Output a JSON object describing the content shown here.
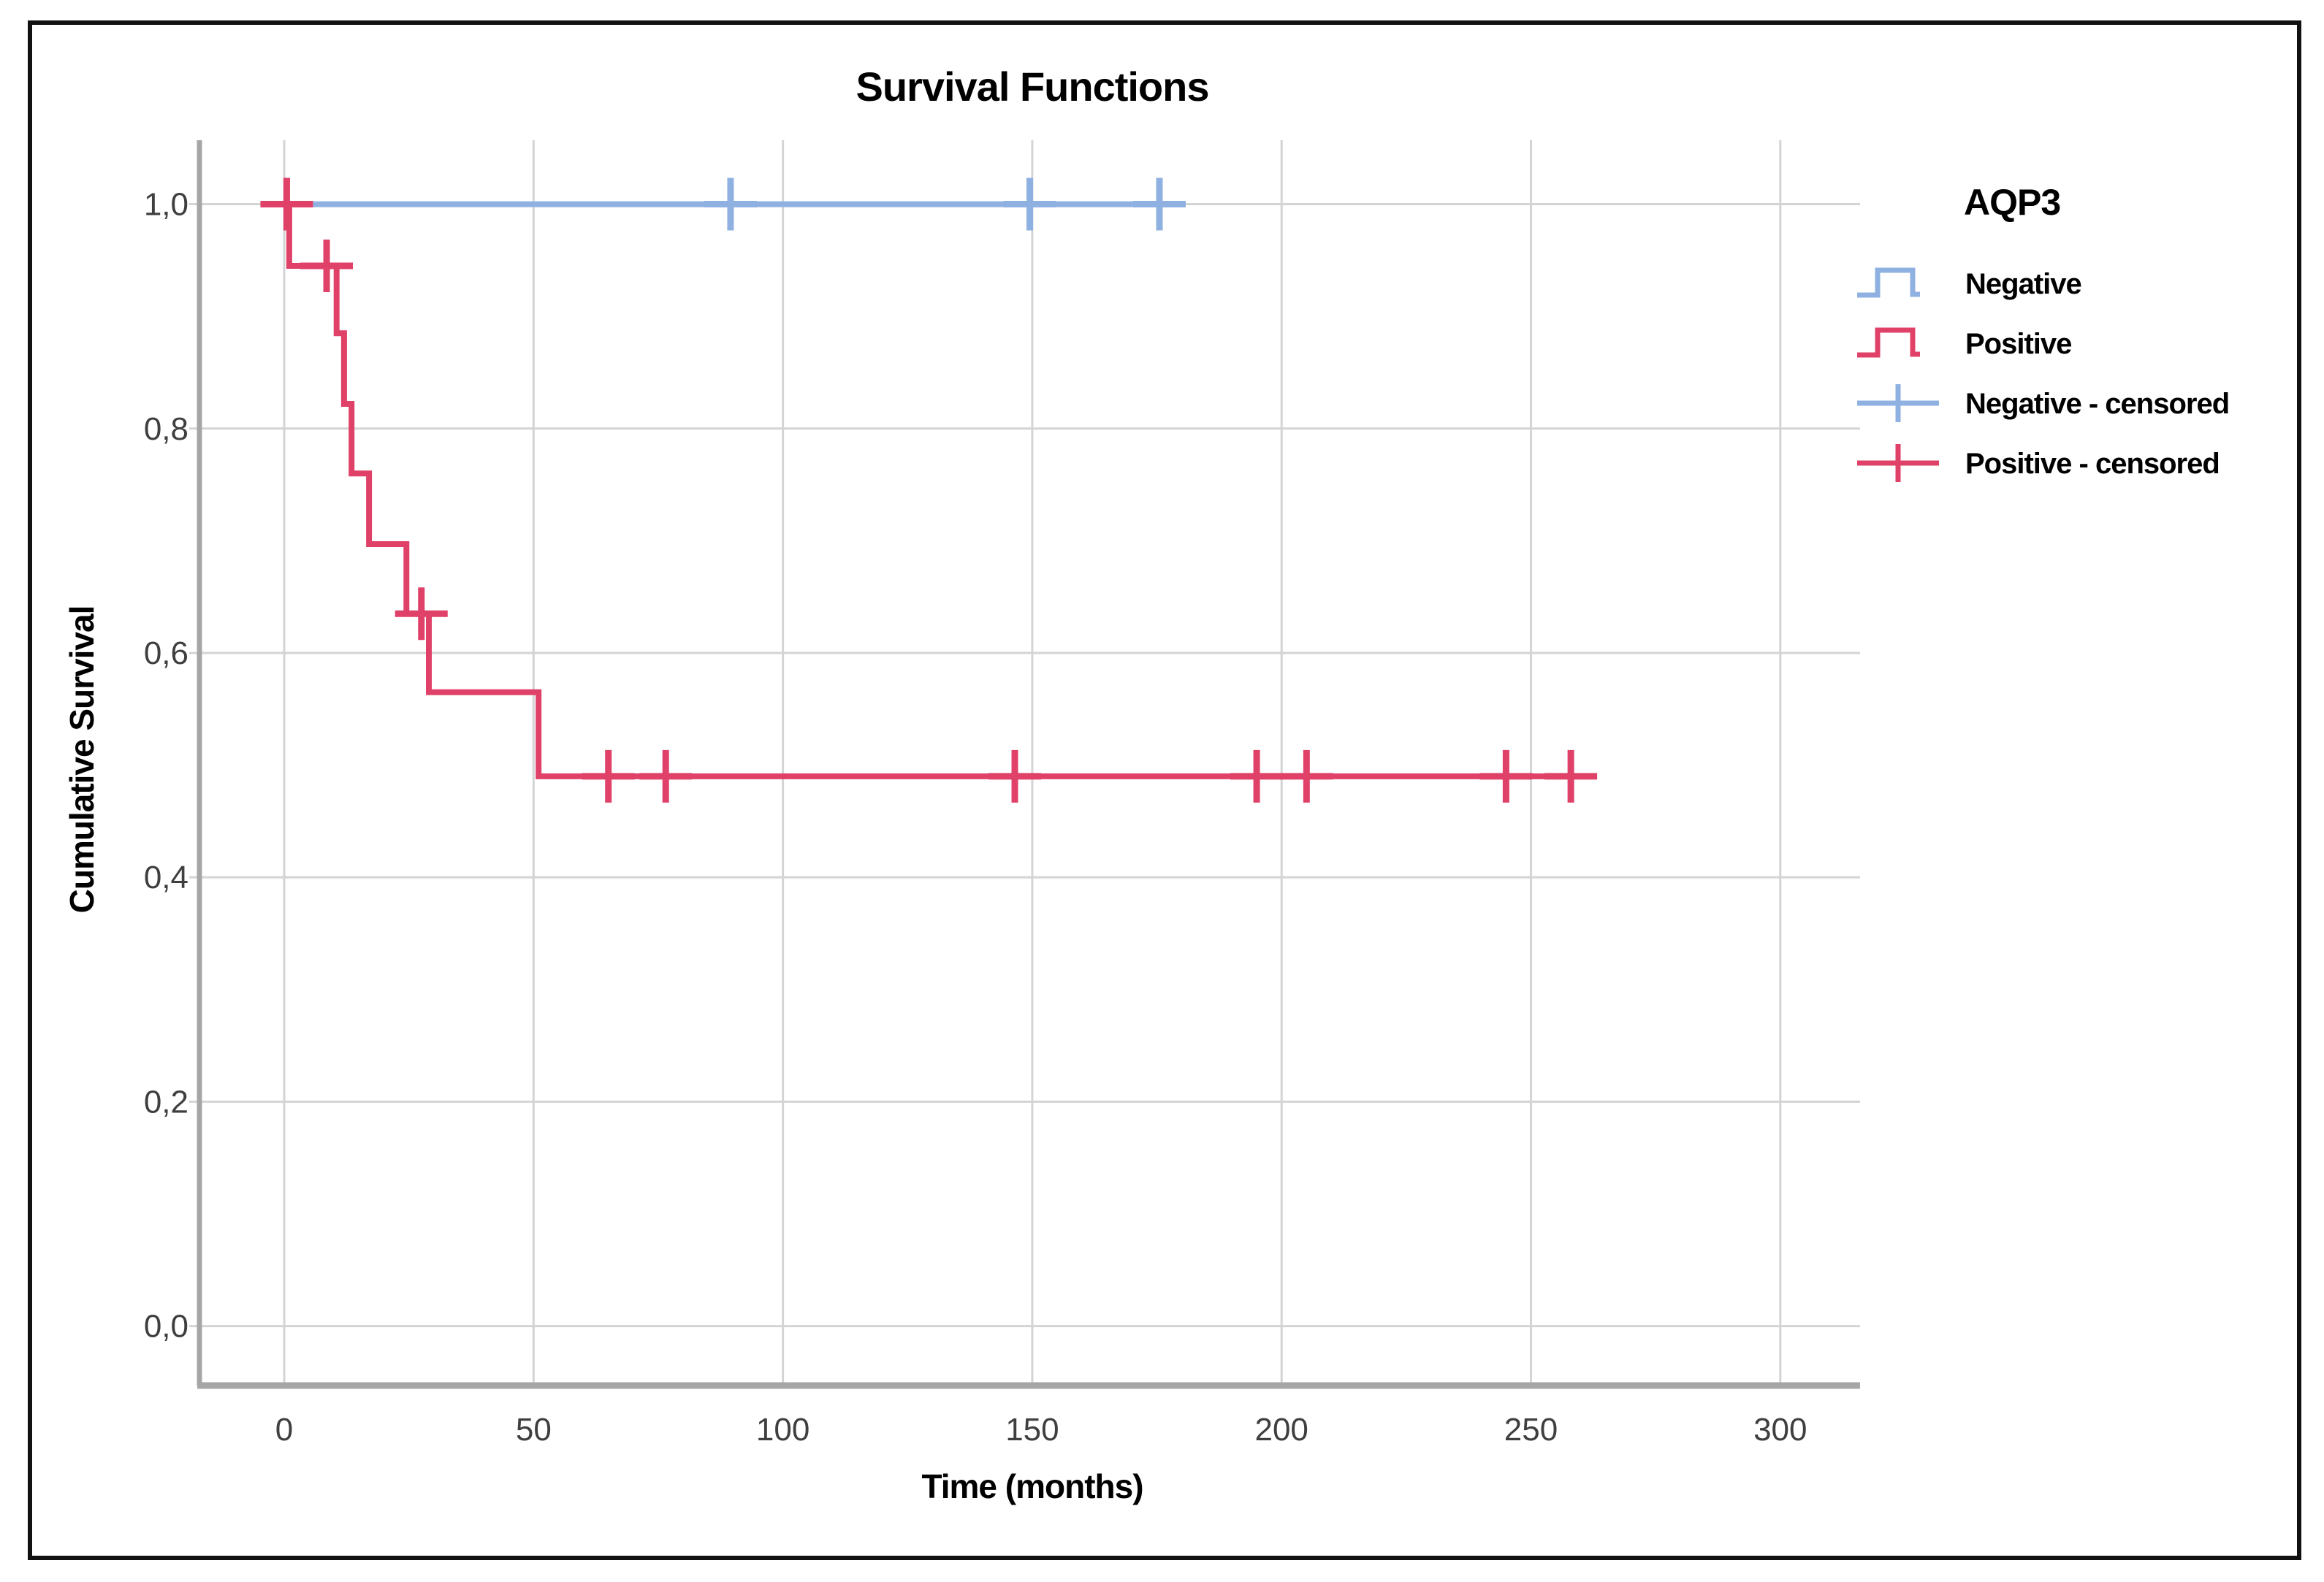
{
  "figure": {
    "title": "Survival Functions",
    "x_axis_title": "Time (months)",
    "y_axis_title": "Cumulative Survival",
    "legend_title": "AQP3"
  },
  "colors": {
    "negative_series": "#8FB1E2",
    "positive_series": "#E04169",
    "grid": "#D4D4D4",
    "axis": "#A6A6A6",
    "tick_label": "#3F3F3F",
    "text": "#000000",
    "outer_border": "#111111",
    "background": "#FFFFFF"
  },
  "chart_data": {
    "type": "line",
    "subtype": "kaplan-meier-step",
    "title": "Survival Functions",
    "xlabel": "Time (months)",
    "ylabel": "Cumulative Survival",
    "legend_title": "AQP3",
    "legend_position": "right",
    "grid": true,
    "xlim": [
      -17,
      316
    ],
    "ylim": [
      -0.053,
      1.057
    ],
    "x_ticks": [
      0,
      50,
      100,
      150,
      200,
      250,
      300
    ],
    "x_tick_labels": [
      "0",
      "50",
      "100",
      "150",
      "200",
      "250",
      "300"
    ],
    "y_ticks": [
      0.0,
      0.2,
      0.4,
      0.6,
      0.8,
      1.0
    ],
    "y_tick_labels": [
      "0,0",
      "0,2",
      "0,4",
      "0,6",
      "0,8",
      "1,0"
    ],
    "series": [
      {
        "name": "Negative",
        "color": "#8FB1E2",
        "points": [
          [
            0,
            1.0
          ],
          [
            177,
            1.0
          ]
        ],
        "censored": [
          [
            89.5,
            1.0
          ],
          [
            149.5,
            1.0
          ],
          [
            175.5,
            1.0
          ]
        ]
      },
      {
        "name": "Positive",
        "color": "#E04169",
        "points": [
          [
            0,
            1.0
          ],
          [
            1,
            1.0
          ],
          [
            1,
            0.945
          ],
          [
            10.5,
            0.945
          ],
          [
            10.5,
            0.885
          ],
          [
            12,
            0.885
          ],
          [
            12,
            0.822
          ],
          [
            13.5,
            0.822
          ],
          [
            13.5,
            0.76
          ],
          [
            17,
            0.76
          ],
          [
            17,
            0.697
          ],
          [
            24.5,
            0.697
          ],
          [
            24.5,
            0.635
          ],
          [
            29,
            0.635
          ],
          [
            29,
            0.565
          ],
          [
            51,
            0.565
          ],
          [
            51,
            0.49
          ],
          [
            259,
            0.49
          ]
        ],
        "censored": [
          [
            0.5,
            1.0
          ],
          [
            8.5,
            0.945
          ],
          [
            27.5,
            0.635
          ],
          [
            65,
            0.49
          ],
          [
            76.5,
            0.49
          ],
          [
            146.5,
            0.49
          ],
          [
            195,
            0.49
          ],
          [
            205,
            0.49
          ],
          [
            245,
            0.49
          ],
          [
            258,
            0.49
          ]
        ]
      }
    ],
    "legend": [
      {
        "label": "Negative",
        "swatch": "step",
        "color": "#8FB1E2"
      },
      {
        "label": "Positive",
        "swatch": "step",
        "color": "#E04169"
      },
      {
        "label": "Negative - censored",
        "swatch": "plus",
        "color": "#8FB1E2"
      },
      {
        "label": "Positive - censored",
        "swatch": "plus",
        "color": "#E04169"
      }
    ]
  }
}
